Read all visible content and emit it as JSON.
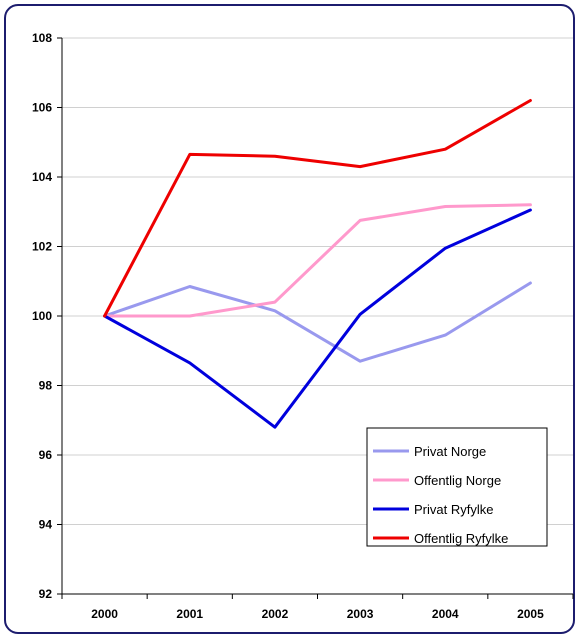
{
  "chart_data": {
    "type": "line",
    "title": "",
    "xlabel": "",
    "ylabel": "",
    "x": [
      "2000",
      "2001",
      "2002",
      "2003",
      "2004",
      "2005"
    ],
    "ylim": [
      92,
      108
    ],
    "yticks": [
      "92",
      "94",
      "96",
      "98",
      "100",
      "102",
      "104",
      "106",
      "108"
    ],
    "grid": "horizontal",
    "legend_position": "bottom-right",
    "series": [
      {
        "name": "Privat Norge",
        "color": "#9999ee",
        "values": [
          100.0,
          100.85,
          100.15,
          98.7,
          99.45,
          100.95
        ]
      },
      {
        "name": "Offentlig Norge",
        "color": "#ff99cc",
        "values": [
          100.0,
          100.0,
          100.4,
          102.75,
          103.15,
          103.2
        ]
      },
      {
        "name": "Privat Ryfylke",
        "color": "#0000dd",
        "values": [
          100.0,
          98.65,
          96.8,
          100.05,
          101.95,
          103.05
        ]
      },
      {
        "name": "Offentlig Ryfylke",
        "color": "#ee0000",
        "values": [
          100.0,
          104.65,
          104.6,
          104.3,
          104.8,
          106.2
        ]
      }
    ]
  }
}
